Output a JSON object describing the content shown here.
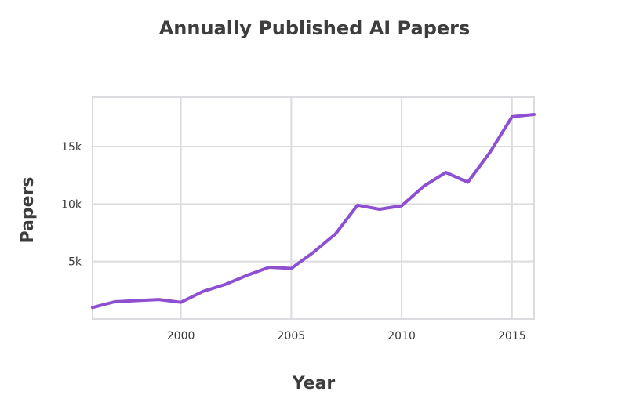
{
  "chart_data": {
    "type": "line",
    "title": "Annually Published AI Papers",
    "xlabel": "Year",
    "ylabel": "Papers",
    "xlim": [
      1996,
      2016
    ],
    "ylim": [
      0,
      19300
    ],
    "x_ticks": [
      {
        "value": 2000,
        "label": "2000"
      },
      {
        "value": 2005,
        "label": "2005"
      },
      {
        "value": 2010,
        "label": "2010"
      },
      {
        "value": 2015,
        "label": "2015"
      }
    ],
    "y_ticks": [
      {
        "value": 5000,
        "label": "5k"
      },
      {
        "value": 10000,
        "label": "10k"
      },
      {
        "value": 15000,
        "label": "15k"
      }
    ],
    "grid": true,
    "series": [
      {
        "color": "#8e4fd1",
        "x": [
          1996,
          1997,
          1998,
          1999,
          2000,
          2001,
          2002,
          2003,
          2004,
          2005,
          2006,
          2007,
          2008,
          2009,
          2010,
          2011,
          2012,
          2013,
          2014,
          2015,
          2016
        ],
        "y": [
          1000,
          1500,
          1600,
          1700,
          1450,
          2400,
          3000,
          3800,
          4500,
          4400,
          5800,
          7400,
          9900,
          9550,
          9850,
          11550,
          12750,
          11900,
          14500,
          17600,
          17800
        ]
      }
    ]
  }
}
